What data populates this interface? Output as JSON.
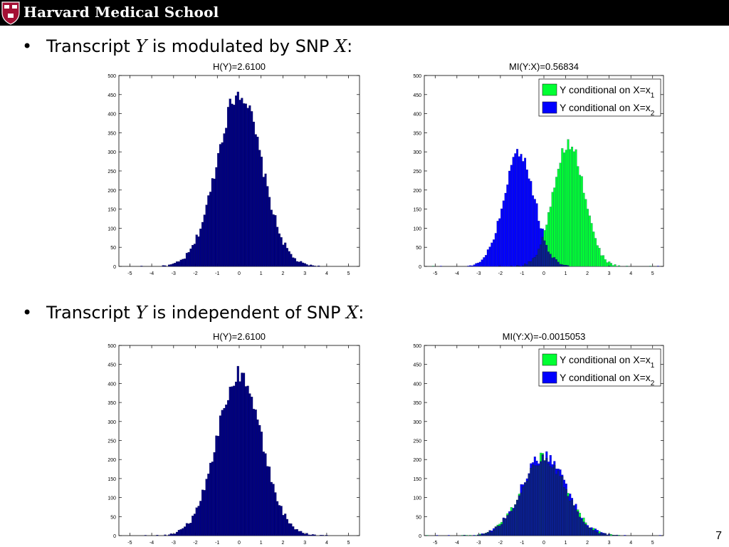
{
  "header": {
    "title": "Harvard Medical School",
    "logo": "harvard-shield-icon"
  },
  "bullets": [
    {
      "glyph": "•",
      "pre": "Transcript ",
      "var1": "Y",
      "mid": " is modulated by SNP ",
      "var2": "X",
      "post": ":"
    },
    {
      "glyph": "•",
      "pre": "Transcript ",
      "var1": "Y",
      "mid": " is independent of SNP ",
      "var2": "X",
      "post": ":"
    }
  ],
  "page_number": "7",
  "colors": {
    "marginal": "#000080",
    "cond1": "#00ff33",
    "cond2": "#0000ff",
    "overlap": "#0a1f8f"
  },
  "chart_data": [
    {
      "type": "histogram",
      "title": "H(Y)=2.6100",
      "xlim": [
        -5.5,
        5.5
      ],
      "ylim": [
        0,
        500
      ],
      "xticks": [
        -5,
        -4,
        -3,
        -2,
        -1,
        0,
        1,
        2,
        3,
        4,
        5
      ],
      "yticks": [
        0,
        50,
        100,
        150,
        200,
        250,
        300,
        350,
        400,
        450,
        500
      ],
      "series": [
        {
          "mu": 0,
          "sigma": 1.02,
          "peak": 455
        }
      ]
    },
    {
      "type": "histogram",
      "title": "MI(Y:X)=0.56834",
      "xlim": [
        -5.5,
        5.5
      ],
      "ylim": [
        0,
        500
      ],
      "xticks": [
        -5,
        -4,
        -3,
        -2,
        -1,
        0,
        1,
        2,
        3,
        4,
        5
      ],
      "yticks": [
        0,
        50,
        100,
        150,
        200,
        250,
        300,
        350,
        400,
        450,
        500
      ],
      "legend": {
        "placement": "top-right",
        "entries": [
          "Y conditional on X=x",
          "Y conditional on X=x"
        ],
        "subscripts": [
          "1",
          "2"
        ]
      },
      "series": [
        {
          "mu": 1.15,
          "sigma": 0.7,
          "peak": 325
        },
        {
          "mu": -1.15,
          "sigma": 0.7,
          "peak": 305
        }
      ]
    },
    {
      "type": "histogram",
      "title": "H(Y)=2.6100",
      "xlim": [
        -5.5,
        5.5
      ],
      "ylim": [
        0,
        500
      ],
      "xticks": [
        -5,
        -4,
        -3,
        -2,
        -1,
        0,
        1,
        2,
        3,
        4,
        5
      ],
      "yticks": [
        0,
        50,
        100,
        150,
        200,
        250,
        300,
        350,
        400,
        450,
        500
      ],
      "series": [
        {
          "mu": 0,
          "sigma": 1.02,
          "peak": 425
        }
      ]
    },
    {
      "type": "histogram",
      "title": "MI(Y:X)=-0.0015053",
      "xlim": [
        -5.5,
        5.5
      ],
      "ylim": [
        0,
        500
      ],
      "xticks": [
        -5,
        -4,
        -3,
        -2,
        -1,
        0,
        1,
        2,
        3,
        4,
        5
      ],
      "yticks": [
        0,
        50,
        100,
        150,
        200,
        250,
        300,
        350,
        400,
        450,
        500
      ],
      "legend": {
        "placement": "top-right",
        "entries": [
          "Y conditional on X=x",
          "Y conditional on X=x"
        ],
        "subscripts": [
          "1",
          "2"
        ]
      },
      "series": [
        {
          "mu": 0,
          "sigma": 1.02,
          "peak": 205
        },
        {
          "mu": 0,
          "sigma": 1.02,
          "peak": 210
        }
      ]
    }
  ]
}
